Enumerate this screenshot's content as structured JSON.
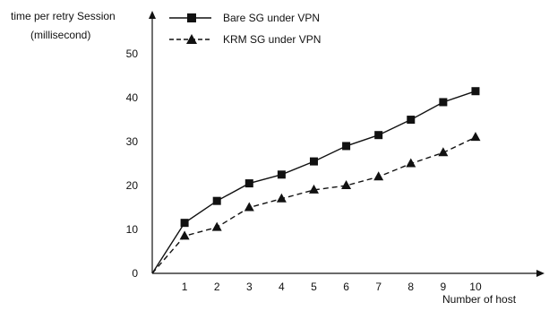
{
  "chart_data": {
    "type": "line",
    "ylabel_line1": "time per retry Session",
    "ylabel_line2": "(millisecond)",
    "xlabel": "Number of host",
    "x": [
      0,
      1,
      2,
      3,
      4,
      5,
      6,
      7,
      8,
      9,
      10
    ],
    "x_tick_labels": [
      "1",
      "2",
      "3",
      "4",
      "5",
      "6",
      "7",
      "8",
      "9",
      "10"
    ],
    "y_tick_labels": [
      "0",
      "10",
      "20",
      "30",
      "40",
      "50"
    ],
    "y_ticks": [
      0,
      10,
      20,
      30,
      40,
      50
    ],
    "xlim": [
      0,
      10.9
    ],
    "ylim": [
      0,
      59
    ],
    "grid": false,
    "legend_position": "top",
    "series": [
      {
        "name": "Bare SG under VPN",
        "marker": "square",
        "line_style": "solid",
        "x": [
          0,
          1,
          2,
          3,
          4,
          5,
          6,
          7,
          8,
          9,
          10
        ],
        "values": [
          0,
          11.5,
          16.5,
          20.5,
          22.5,
          25.5,
          29,
          31.5,
          35,
          39,
          41.5
        ]
      },
      {
        "name": "KRM SG under VPN",
        "marker": "triangle",
        "line_style": "dashed",
        "x": [
          0,
          1,
          2,
          3,
          4,
          5,
          6,
          7,
          8,
          9,
          10
        ],
        "values": [
          0,
          8.5,
          10.5,
          15,
          17,
          19,
          20,
          22,
          25,
          27.5,
          31
        ]
      }
    ]
  }
}
